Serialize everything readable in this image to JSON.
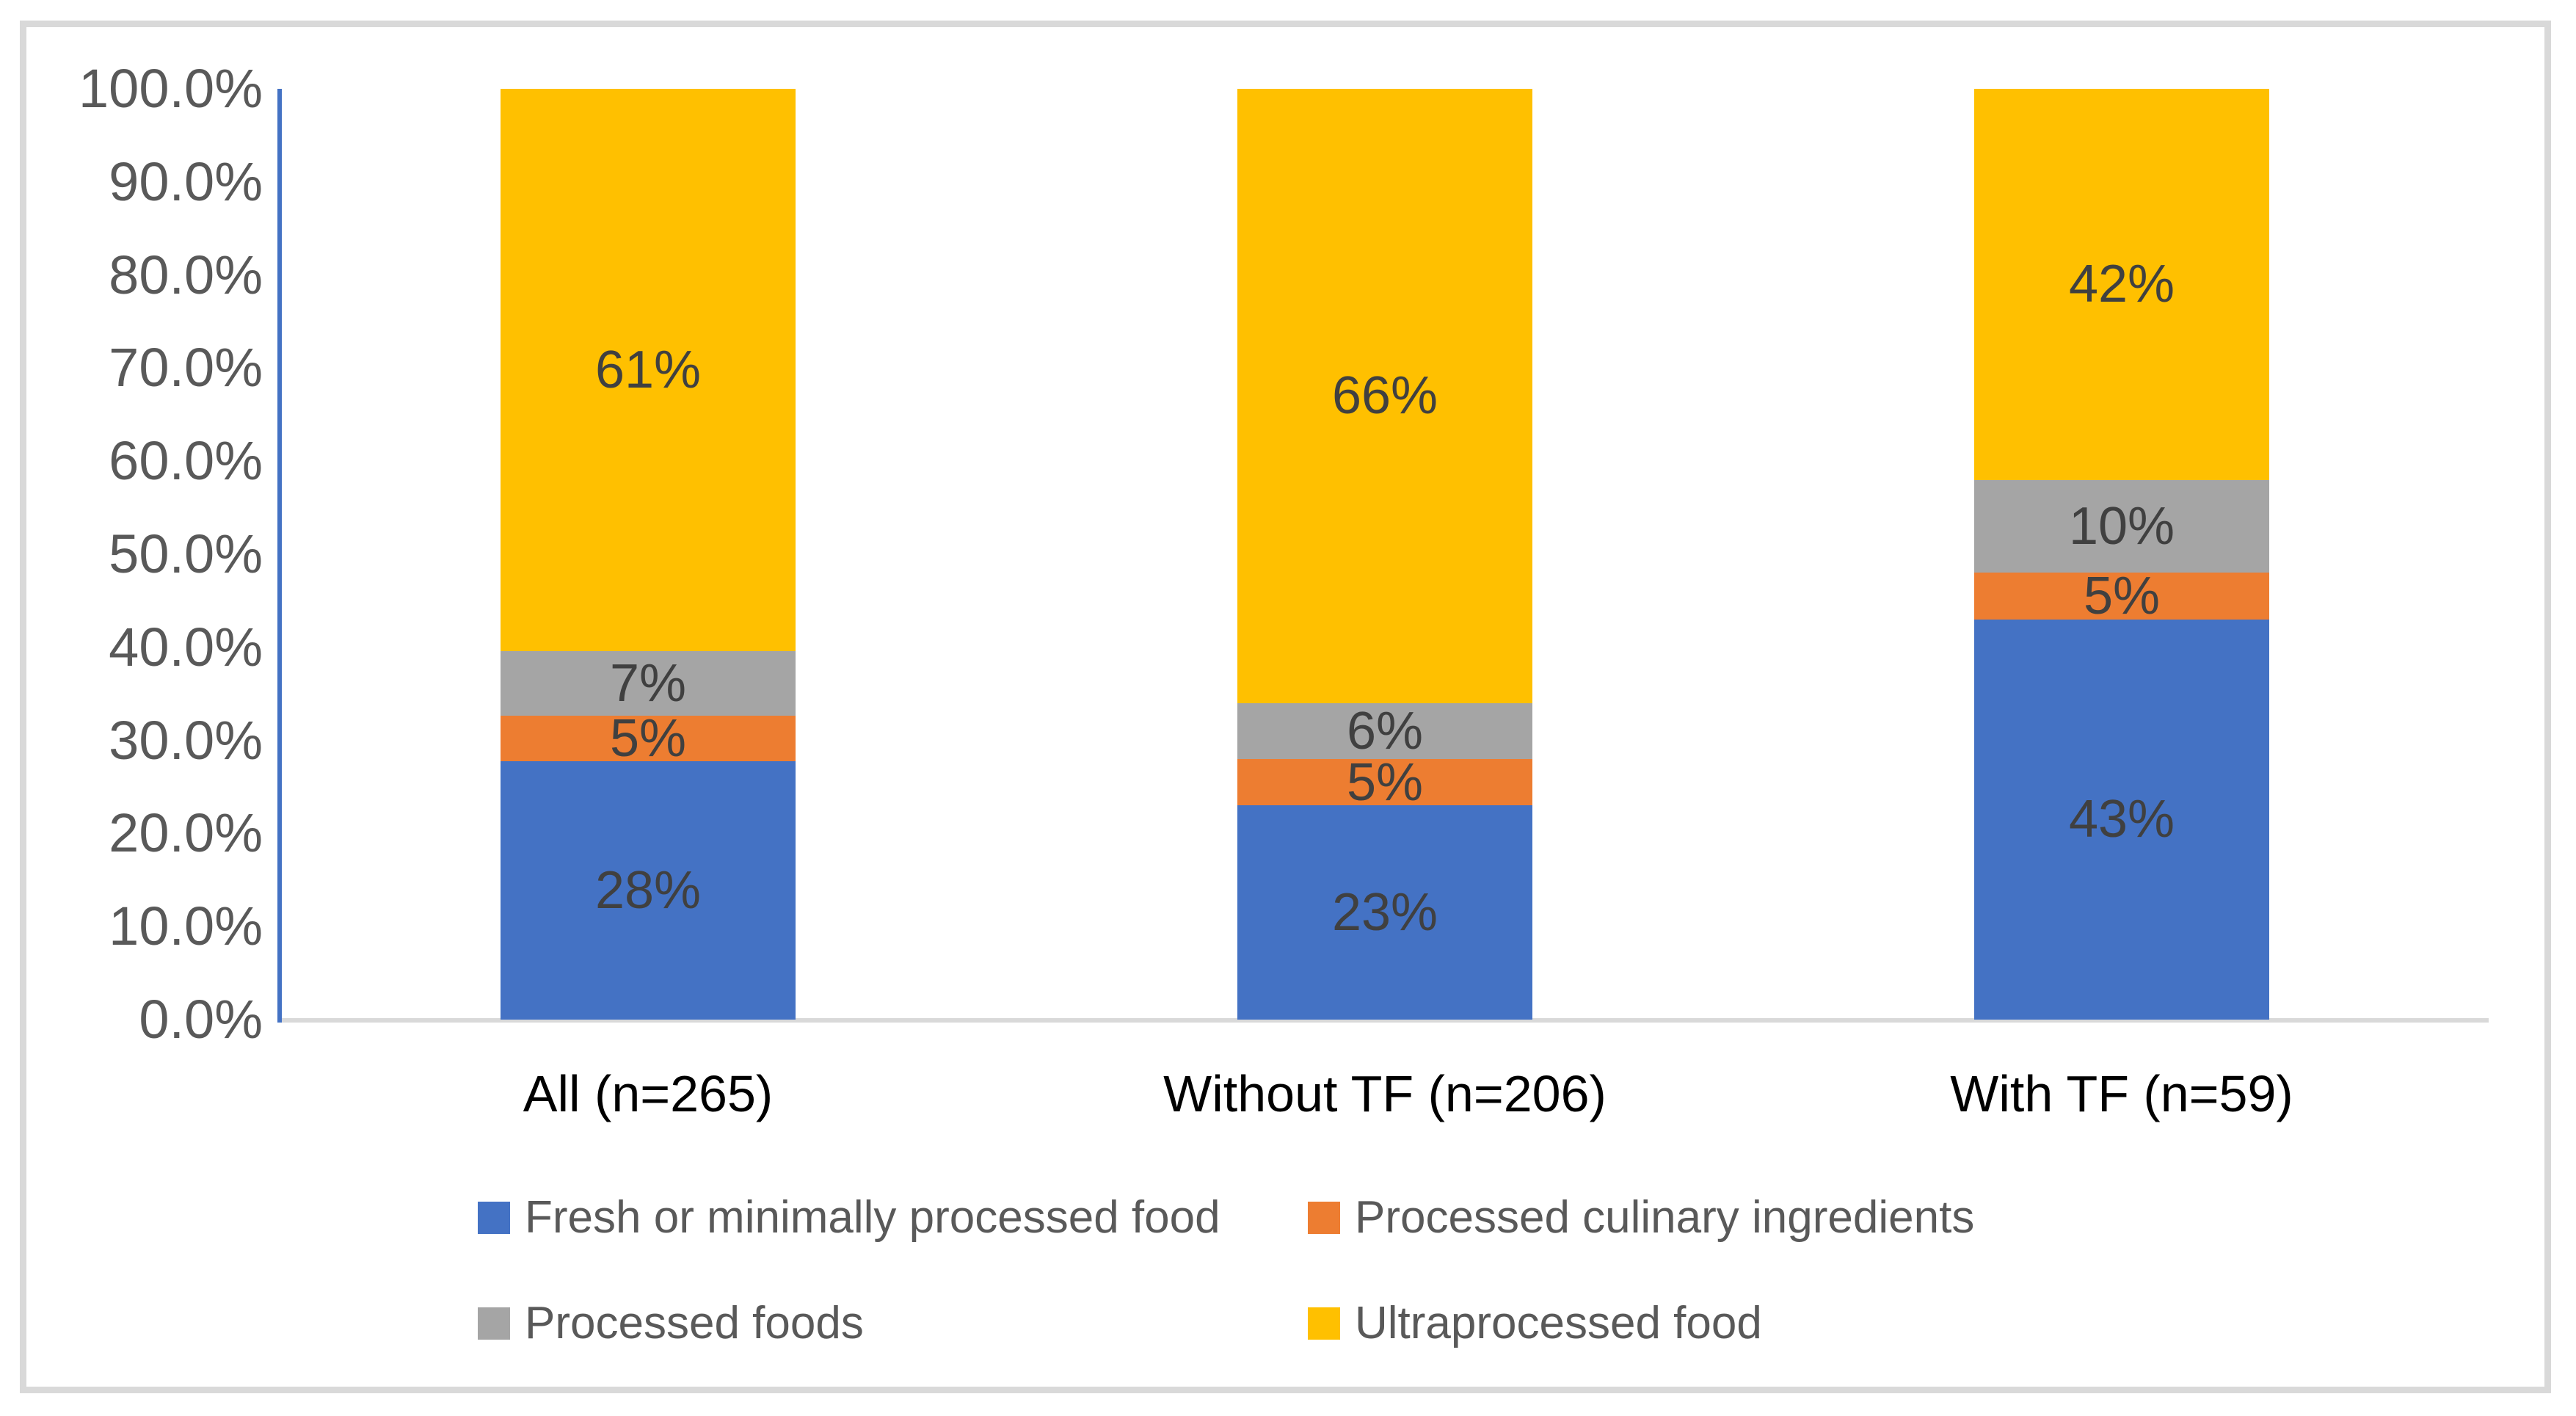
{
  "chart_data": {
    "type": "bar",
    "subtype": "stacked-100-percent-column",
    "title": "",
    "categories": [
      "All (n=265)",
      "Without TF (n=206)",
      "With TF (n=59)"
    ],
    "series": [
      {
        "name": "Fresh or minimally processed food",
        "color": "#4472C4",
        "values": [
          28,
          23,
          43
        ],
        "labels": [
          "28%",
          "23%",
          "43%"
        ]
      },
      {
        "name": "Processed culinary ingredients",
        "color": "#ED7D31",
        "values": [
          5,
          5,
          5
        ],
        "labels": [
          "5%",
          "5%",
          "5%"
        ]
      },
      {
        "name": "Processed foods",
        "color": "#A5A5A5",
        "values": [
          7,
          6,
          10
        ],
        "labels": [
          "7%",
          "6%",
          "10%"
        ]
      },
      {
        "name": "Ultraprocessed food",
        "color": "#FFC000",
        "values": [
          61,
          66,
          42
        ],
        "labels": [
          "61%",
          "66%",
          "42%"
        ]
      }
    ],
    "y_axis": {
      "min": 0,
      "max": 100,
      "tick_labels": [
        "0.0%",
        "10.0%",
        "20.0%",
        "30.0%",
        "40.0%",
        "50.0%",
        "60.0%",
        "70.0%",
        "80.0%",
        "90.0%",
        "100.0%"
      ]
    },
    "xlabel": "",
    "ylabel": "",
    "grid": false,
    "legend_position": "bottom"
  },
  "colors": {
    "y_axis_line": "#4472C4",
    "x_axis_line": "#D9D9D9",
    "frame_border": "#D9D9D9",
    "tick_label_text": "#595959",
    "data_label_text": "#404040",
    "category_label_text": "#000000",
    "legend_text": "#595959",
    "background": "#FFFFFF"
  }
}
